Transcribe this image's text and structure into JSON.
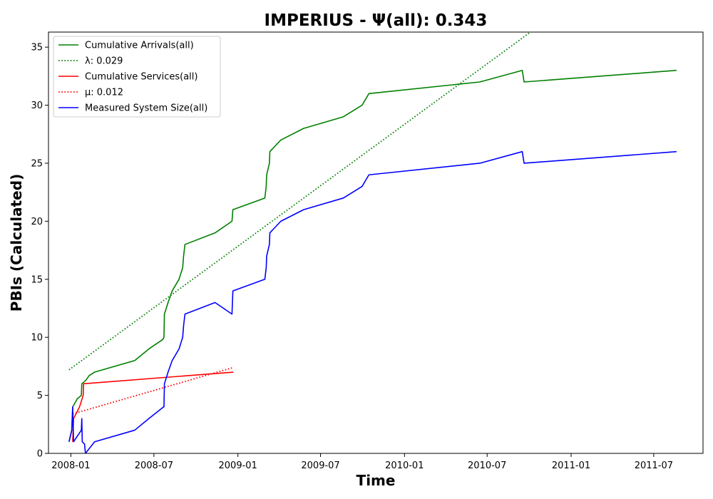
{
  "chart_data": {
    "type": "line",
    "title": "IMPERIUS -  Ψ(all): 0.343",
    "xlabel": "Time",
    "ylabel": "PBIs (Calculated)",
    "xlim": [
      "2007-11-13",
      "2011-10-17"
    ],
    "ylim": [
      0,
      36.3
    ],
    "x_ticks": [
      "2008-01-01",
      "2008-07-01",
      "2009-01-01",
      "2009-07-01",
      "2010-01-01",
      "2010-07-01",
      "2011-01-01",
      "2011-07-01"
    ],
    "x_tick_labels": [
      "2008-01",
      "2008-07",
      "2009-01",
      "2009-07",
      "2010-01",
      "2010-07",
      "2011-01",
      "2011-07"
    ],
    "y_ticks": [
      0,
      5,
      10,
      15,
      20,
      25,
      30,
      35
    ],
    "y_tick_labels": [
      "0",
      "5",
      "10",
      "15",
      "20",
      "25",
      "30",
      "35"
    ],
    "grid": false,
    "legend_position": "top-left",
    "series": [
      {
        "name": "Cumulative Arrivals(all)",
        "style": "solid",
        "color": "#008000",
        "points": [
          [
            "2007-12-28",
            1
          ],
          [
            "2008-01-03",
            2
          ],
          [
            "2008-01-05",
            4
          ],
          [
            "2008-01-15",
            4.7
          ],
          [
            "2008-01-24",
            5
          ],
          [
            "2008-01-25",
            6
          ],
          [
            "2008-02-03",
            6.3
          ],
          [
            "2008-02-10",
            6.7
          ],
          [
            "2008-02-22",
            7
          ],
          [
            "2008-05-20",
            8
          ],
          [
            "2008-06-20",
            9
          ],
          [
            "2008-07-20",
            9.8
          ],
          [
            "2008-07-23",
            10
          ],
          [
            "2008-07-24",
            12
          ],
          [
            "2008-08-01",
            13
          ],
          [
            "2008-08-10",
            14
          ],
          [
            "2008-08-25",
            15
          ],
          [
            "2008-09-02",
            16
          ],
          [
            "2008-09-04",
            17
          ],
          [
            "2008-09-07",
            18
          ],
          [
            "2008-11-12",
            19
          ],
          [
            "2008-12-19",
            20
          ],
          [
            "2008-12-21",
            21
          ],
          [
            "2009-03-01",
            22
          ],
          [
            "2009-03-04",
            23
          ],
          [
            "2009-03-05",
            24
          ],
          [
            "2009-03-11",
            25
          ],
          [
            "2009-03-12",
            26
          ],
          [
            "2009-04-05",
            27
          ],
          [
            "2009-05-25",
            28
          ],
          [
            "2009-08-20",
            29
          ],
          [
            "2009-09-30",
            30
          ],
          [
            "2009-10-15",
            31
          ],
          [
            "2010-06-15",
            32
          ],
          [
            "2010-09-16",
            33
          ],
          [
            "2010-09-20",
            32
          ],
          [
            "2011-08-20",
            33
          ]
        ]
      },
      {
        "name": "λ: 0.029",
        "style": "dotted",
        "color": "#008000",
        "points": [
          [
            "2007-12-28",
            7.2
          ],
          [
            "2010-10-04",
            36.3
          ]
        ]
      },
      {
        "name": "Cumulative Services(all)",
        "style": "solid",
        "color": "#ff0000",
        "points": [
          [
            "2008-01-05",
            1
          ],
          [
            "2008-01-07",
            3
          ],
          [
            "2008-01-20",
            4
          ],
          [
            "2008-01-28",
            5
          ],
          [
            "2008-01-29",
            6
          ],
          [
            "2008-12-22",
            7
          ]
        ]
      },
      {
        "name": "μ: 0.012",
        "style": "dotted",
        "color": "#ff0000",
        "points": [
          [
            "2008-01-05",
            3.4
          ],
          [
            "2008-12-22",
            7.4
          ]
        ]
      },
      {
        "name": "Measured System Size(all)",
        "style": "solid",
        "color": "#0000ff",
        "points": [
          [
            "2007-12-28",
            1
          ],
          [
            "2008-01-03",
            2
          ],
          [
            "2008-01-05",
            4
          ],
          [
            "2008-01-07",
            1
          ],
          [
            "2008-01-24",
            2
          ],
          [
            "2008-01-25",
            3
          ],
          [
            "2008-01-26",
            1
          ],
          [
            "2008-01-31",
            0.8
          ],
          [
            "2008-02-02",
            0
          ],
          [
            "2008-02-22",
            1
          ],
          [
            "2008-05-20",
            2
          ],
          [
            "2008-06-20",
            3
          ],
          [
            "2008-07-22",
            4
          ],
          [
            "2008-07-23",
            4
          ],
          [
            "2008-07-24",
            6
          ],
          [
            "2008-08-01",
            7
          ],
          [
            "2008-08-10",
            8
          ],
          [
            "2008-08-25",
            9
          ],
          [
            "2008-09-02",
            10
          ],
          [
            "2008-09-04",
            11
          ],
          [
            "2008-09-07",
            12
          ],
          [
            "2008-11-12",
            13
          ],
          [
            "2008-12-19",
            12
          ],
          [
            "2008-12-20",
            13
          ],
          [
            "2008-12-21",
            14
          ],
          [
            "2009-03-01",
            15
          ],
          [
            "2009-03-04",
            16
          ],
          [
            "2009-03-05",
            17
          ],
          [
            "2009-03-11",
            18
          ],
          [
            "2009-03-12",
            19
          ],
          [
            "2009-04-05",
            20
          ],
          [
            "2009-05-25",
            21
          ],
          [
            "2009-08-20",
            22
          ],
          [
            "2009-09-30",
            23
          ],
          [
            "2009-10-15",
            24
          ],
          [
            "2010-06-15",
            25
          ],
          [
            "2010-09-16",
            26
          ],
          [
            "2010-09-20",
            25
          ],
          [
            "2011-08-20",
            26
          ]
        ]
      }
    ]
  }
}
